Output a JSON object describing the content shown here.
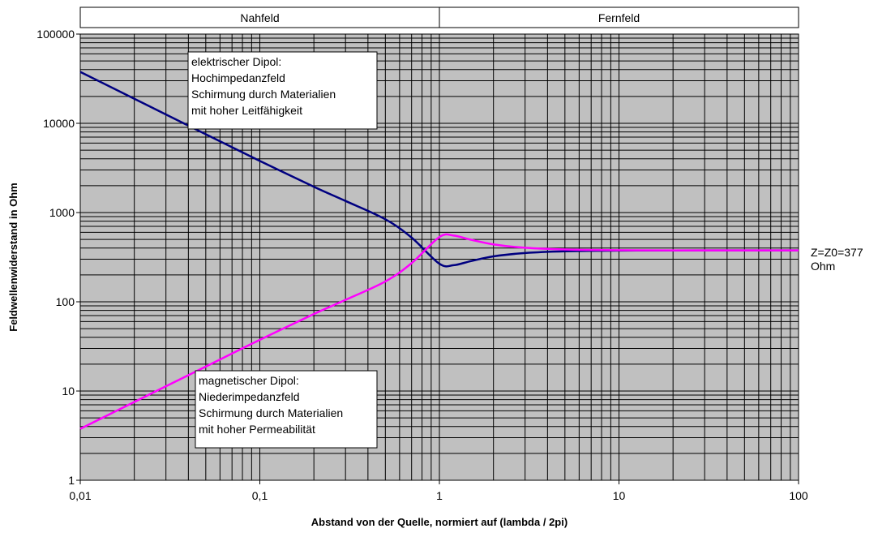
{
  "chart_data": {
    "type": "line",
    "x_scale": "log",
    "y_scale": "log",
    "xlim": [
      0.01,
      100
    ],
    "ylim": [
      1,
      100000
    ],
    "xlabel": "Abstand von der Quelle, normiert auf (lambda / 2pi)",
    "ylabel": "Feldwellenwiderstand in Ohm",
    "x_tick_labels": [
      "0,01",
      "0,1",
      "1",
      "10",
      "100"
    ],
    "y_tick_labels": [
      "1",
      "10",
      "100",
      "1000",
      "10000",
      "100000"
    ],
    "grid": true,
    "background_color": "#c0c0c0",
    "regions": [
      {
        "label": "Nahfeld",
        "from": 0.01,
        "to": 1
      },
      {
        "label": "Fernfeld",
        "from": 1,
        "to": 100
      }
    ],
    "series": [
      {
        "color": "#000080",
        "annotation": [
          "elektrischer Dipol:",
          "Hochimpedanzfeld",
          "Schirmung durch Materialien",
          "mit hoher Leitfähigkeit"
        ],
        "points": [
          [
            0.01,
            37700
          ],
          [
            0.02,
            18850
          ],
          [
            0.05,
            7542
          ],
          [
            0.1,
            3790
          ],
          [
            0.2,
            1944
          ],
          [
            0.3,
            1349
          ],
          [
            0.5,
            840
          ],
          [
            0.7,
            524
          ],
          [
            1,
            267
          ],
          [
            1.2,
            257
          ],
          [
            1.5,
            286
          ],
          [
            2,
            323
          ],
          [
            3,
            352
          ],
          [
            5,
            368
          ],
          [
            10,
            375
          ],
          [
            20,
            376
          ],
          [
            50,
            377
          ],
          [
            100,
            377
          ]
        ]
      },
      {
        "color": "#ff00ff",
        "annotation": [
          "magnetischer Dipol:",
          "Niederimpedanzfeld",
          "Schirmung durch Materialien",
          "mit hoher Permeabilität"
        ],
        "points": [
          [
            0.01,
            3.77
          ],
          [
            0.02,
            7.54
          ],
          [
            0.05,
            18.8
          ],
          [
            0.1,
            37.5
          ],
          [
            0.2,
            73
          ],
          [
            0.3,
            105
          ],
          [
            0.5,
            169
          ],
          [
            0.7,
            271
          ],
          [
            1,
            532
          ],
          [
            1.2,
            552
          ],
          [
            1.5,
            496
          ],
          [
            2,
            440
          ],
          [
            3,
            403
          ],
          [
            5,
            386
          ],
          [
            10,
            379
          ],
          [
            20,
            377
          ],
          [
            50,
            377
          ],
          [
            100,
            377
          ]
        ]
      }
    ],
    "right_annotation": [
      "Z=Z0=377",
      "Ohm"
    ]
  }
}
